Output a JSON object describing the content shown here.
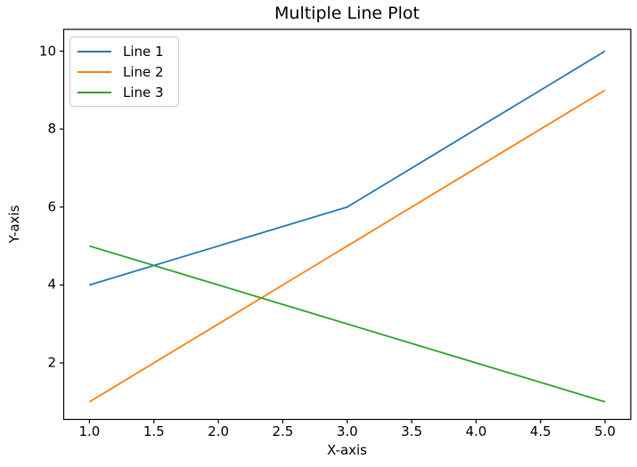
{
  "figure": {
    "background": "#ffffff",
    "spine_color": "#000000",
    "text_color": "#000000"
  },
  "chart_data": {
    "type": "line",
    "title": "Multiple Line Plot",
    "xlabel": "X-axis",
    "ylabel": "Y-axis",
    "x": [
      1,
      2,
      3,
      4,
      5
    ],
    "series": [
      {
        "name": "Line 1",
        "color": "#1f77b4",
        "values": [
          4,
          5,
          6,
          8,
          10
        ]
      },
      {
        "name": "Line 2",
        "color": "#ff7f0e",
        "values": [
          1,
          3,
          5,
          7,
          9
        ]
      },
      {
        "name": "Line 3",
        "color": "#2ca02c",
        "values": [
          5,
          4,
          3,
          2,
          1
        ]
      }
    ],
    "xlim": [
      0.8,
      5.2
    ],
    "ylim": [
      0.55,
      10.56
    ],
    "x_ticks": {
      "values": [
        1,
        1.5,
        2,
        2.5,
        3,
        3.5,
        4,
        4.5,
        5
      ],
      "labels": [
        "1.0",
        "1.5",
        "2.0",
        "2.5",
        "3.0",
        "3.5",
        "4.0",
        "4.5",
        "5.0"
      ]
    },
    "y_ticks": {
      "values": [
        2,
        4,
        6,
        8,
        10
      ],
      "labels": [
        "2",
        "4",
        "6",
        "8",
        "10"
      ]
    },
    "grid": false,
    "legend_position": "upper left",
    "line_width": 1.8
  }
}
